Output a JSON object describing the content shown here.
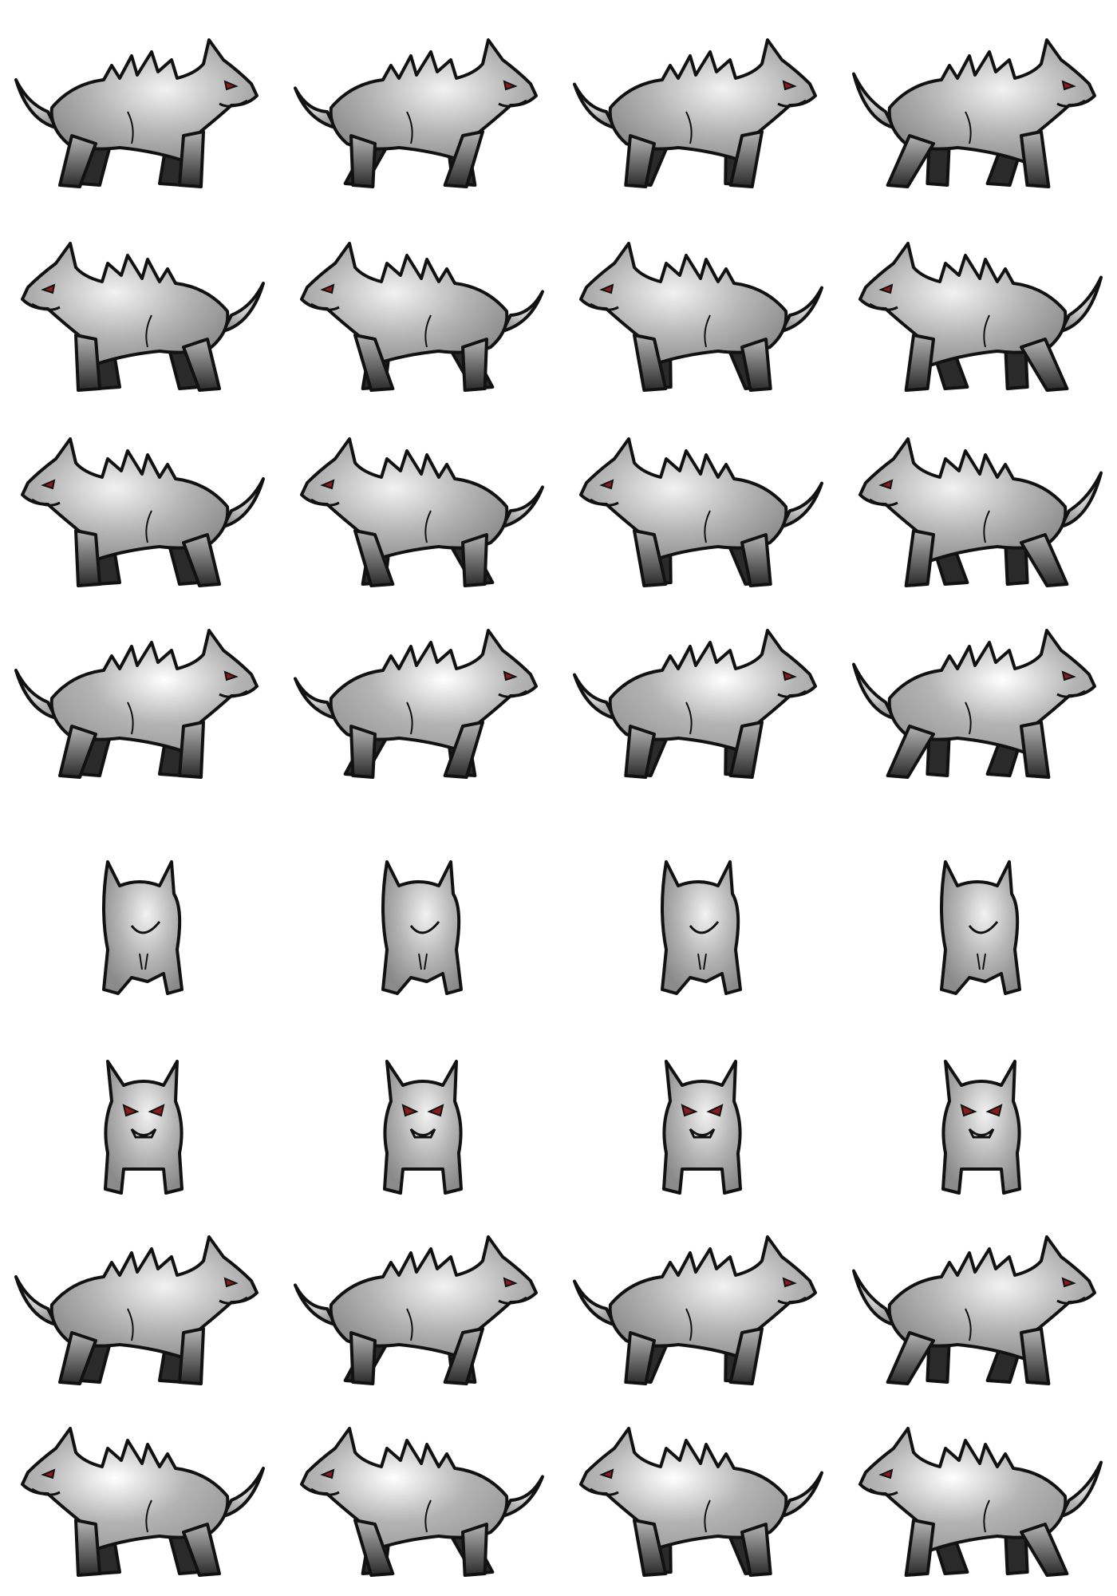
{
  "sprite_sheet": {
    "columns": 4,
    "background": "#ffffff",
    "colors": {
      "outline": "#111111",
      "fur_light": "#f2f2f2",
      "fur_mid": "#b4b4b4",
      "fur_dark": "#8a8a8a",
      "fur_dark_white_wolf": "#9a9a9a",
      "fur_light_white_wolf": "#ffffff",
      "shadow_leg": "#2a2a2a",
      "eye": "#8b1a1a"
    },
    "rows": [
      {
        "pose": "side",
        "facing": "right",
        "tone": "grey",
        "frames": 4
      },
      {
        "pose": "side",
        "facing": "left",
        "tone": "grey",
        "frames": 4
      },
      {
        "pose": "side",
        "facing": "left",
        "tone": "grey",
        "frames": 4
      },
      {
        "pose": "side",
        "facing": "right",
        "tone": "white",
        "frames": 4
      },
      {
        "pose": "back",
        "facing": "away",
        "tone": "grey",
        "frames": 4
      },
      {
        "pose": "front",
        "facing": "viewer",
        "tone": "grey",
        "frames": 4
      },
      {
        "pose": "side",
        "facing": "right",
        "tone": "grey",
        "frames": 4
      },
      {
        "pose": "side",
        "facing": "left",
        "tone": "white",
        "frames": 4
      }
    ]
  }
}
